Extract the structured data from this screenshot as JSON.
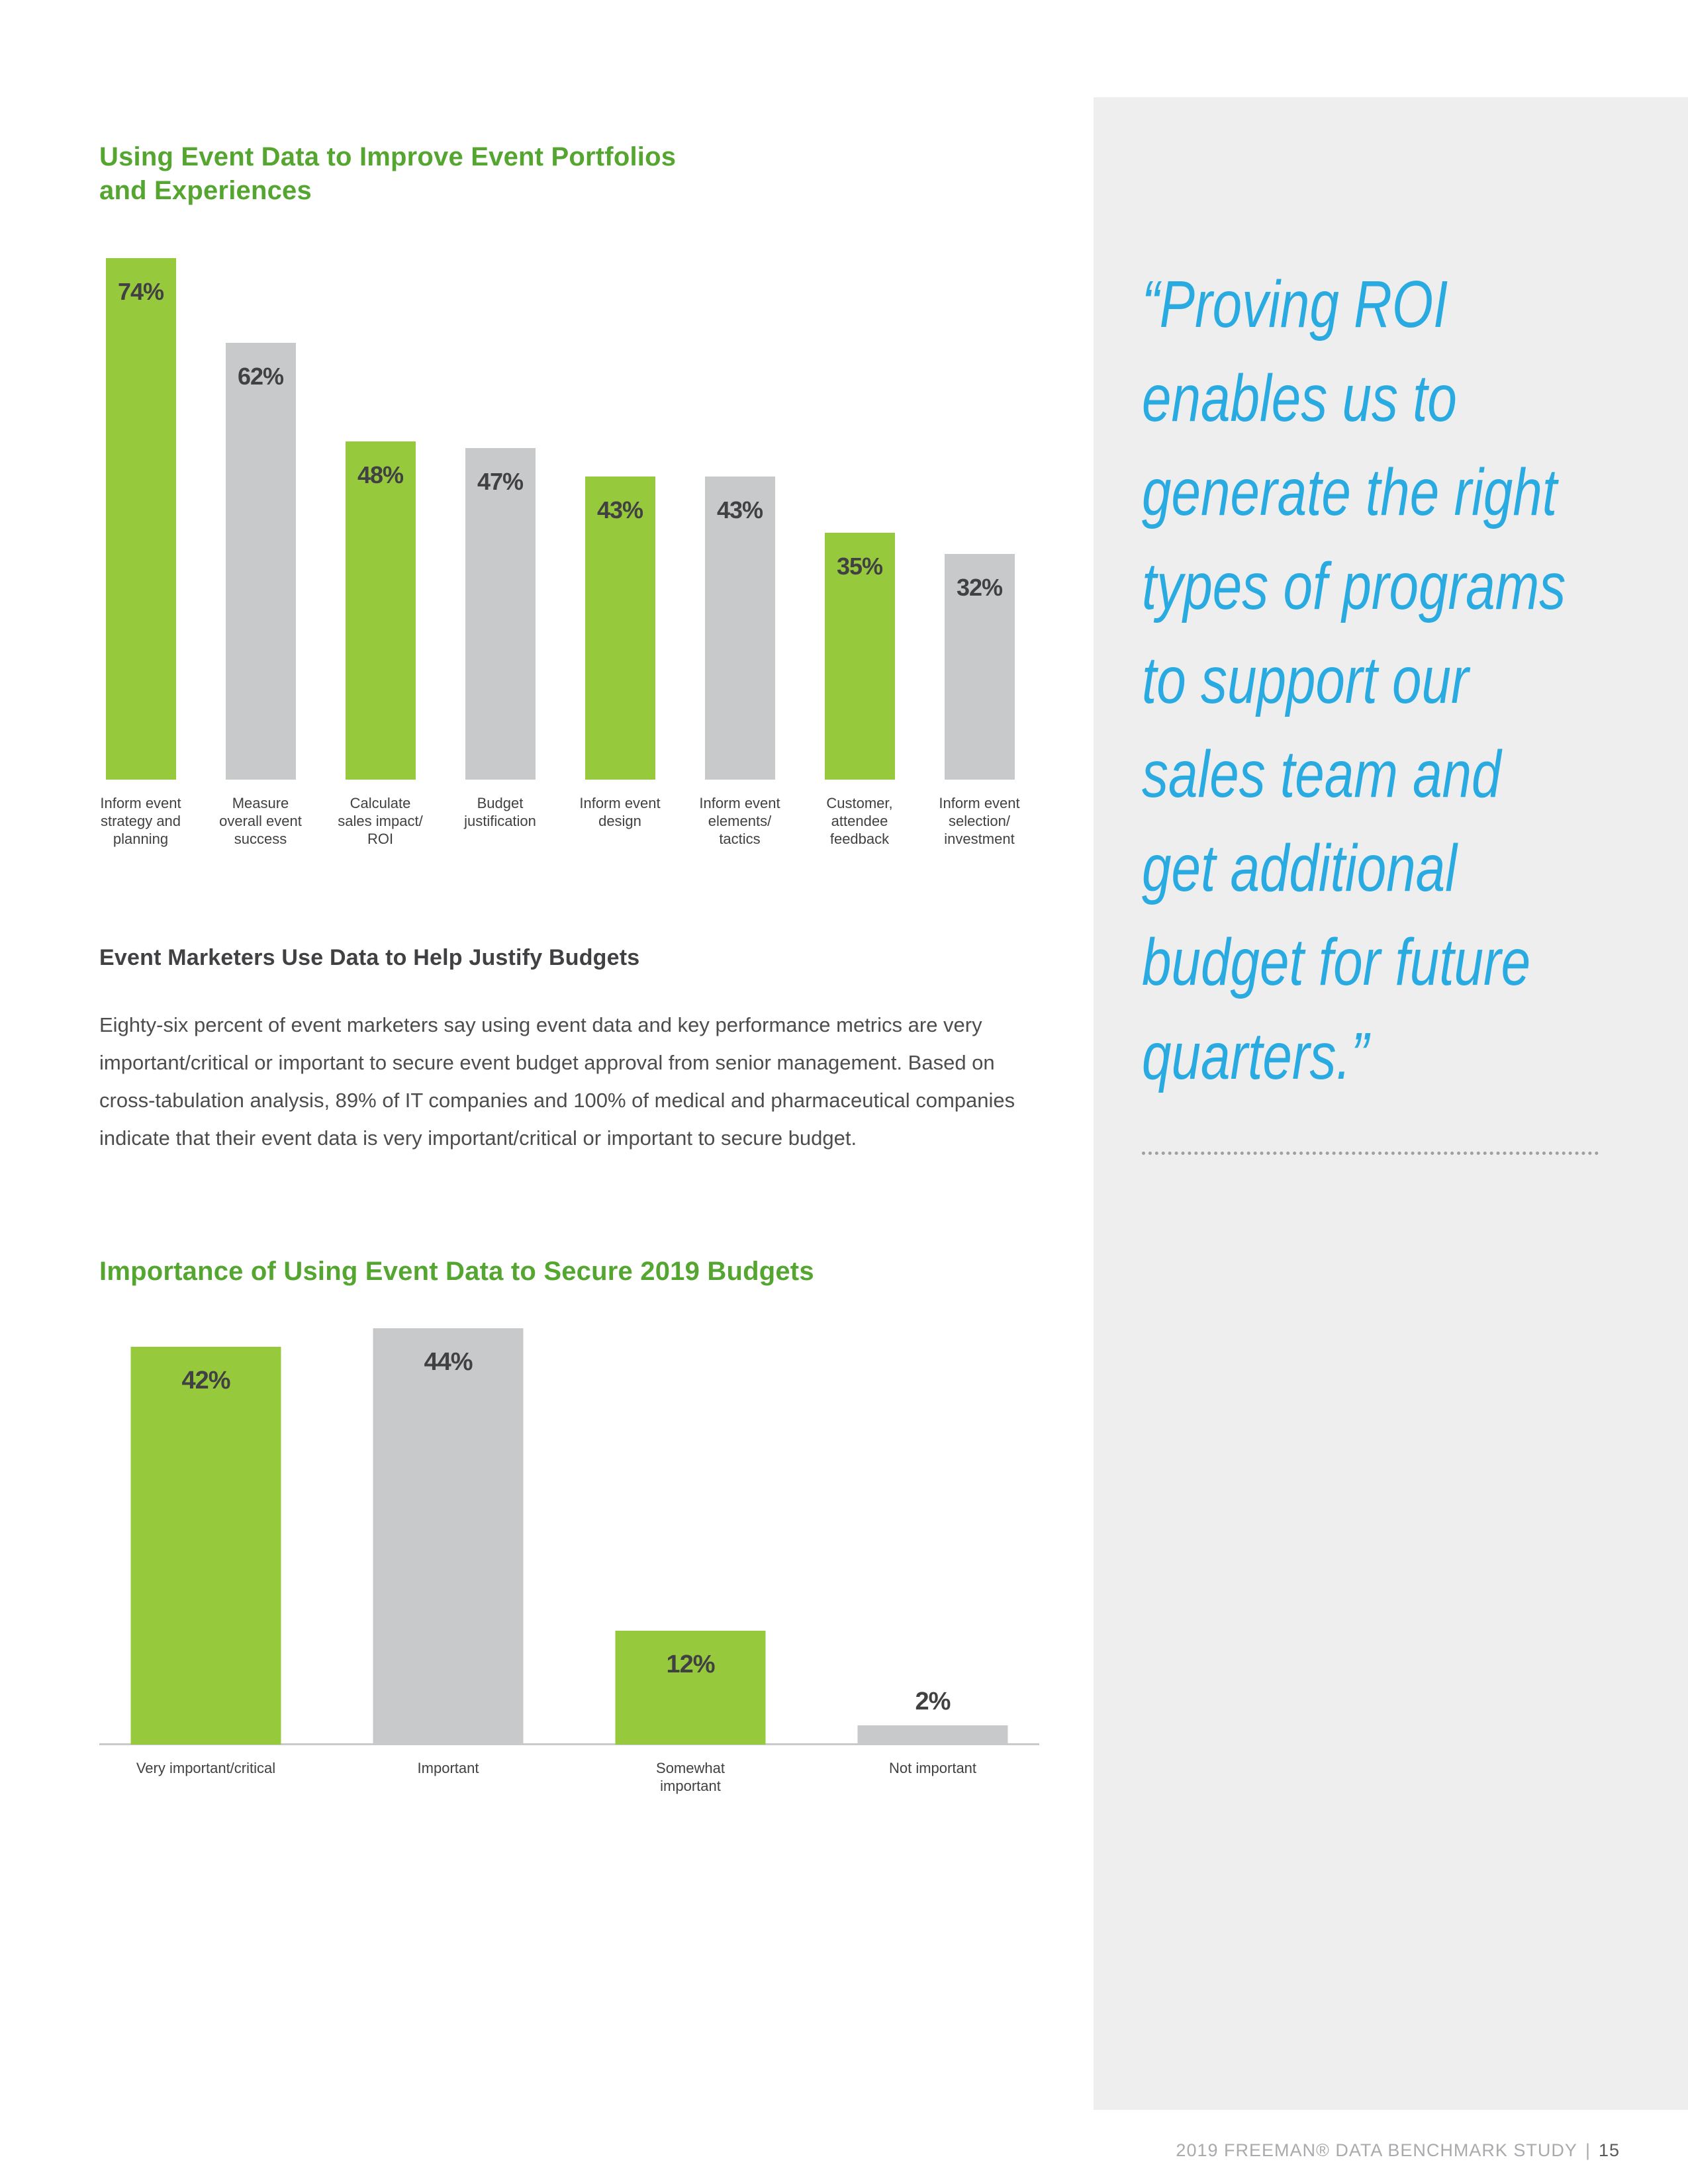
{
  "headings": {
    "chart1_title": "Using Event Data to Improve Event Portfolios\nand Experiences",
    "section2": "Event Marketers Use Data to Help Justify Budgets",
    "chart2_title": "Importance of Using Event Data to Secure 2019 Budgets"
  },
  "paragraph": "Eighty-six percent of event marketers say using event data and key performance metrics are very important/critical or important to secure event budget approval from senior management. Based on cross-tabulation analysis, 89% of IT companies and 100% of medical and pharmaceutical companies indicate that their event data is very important/critical or important to secure budget.",
  "quote": {
    "text": "“Proving ROI\nenables us to\ngenerate the right\ntypes of programs\nto support our\nsales team and\nget additional\nbudget for future\nquarters.”",
    "color": "#29ABE2"
  },
  "footer": {
    "study": "2019 FREEMAN® DATA BENCHMARK STUDY",
    "separator": "|",
    "page_number": "15"
  },
  "colors": {
    "heading_green": "#55A630",
    "bar_green": "#97C93D",
    "bar_gray": "#C8C9CB",
    "quote_blue": "#29ABE2",
    "text_dark": "#414042",
    "sidebar_bg": "#EEEEEF",
    "footer_gray": "#A8AAAD"
  },
  "chart_data": [
    {
      "type": "bar",
      "title": "Using Event Data to Improve Event Portfolios and Experiences",
      "categories": [
        "Inform event\nstrategy and\nplanning",
        "Measure\noverall event\nsuccess",
        "Calculate\nsales impact/\nROI",
        "Budget\njustification",
        "Inform event\ndesign",
        "Inform event\nelements/\ntactics",
        "Customer,\nattendee\nfeedback",
        "Inform event\nselection/\ninvestment"
      ],
      "values": [
        74,
        62,
        48,
        47,
        43,
        43,
        35,
        32
      ],
      "unit": "%",
      "bar_colors": [
        "#97C93D",
        "#C8C9CB",
        "#97C93D",
        "#C8C9CB",
        "#97C93D",
        "#C8C9CB",
        "#97C93D",
        "#C8C9CB"
      ],
      "ylim": [
        0,
        80
      ],
      "grid": false,
      "legend": false
    },
    {
      "type": "bar",
      "title": "Importance of Using Event Data to Secure 2019 Budgets",
      "categories": [
        "Very important/critical",
        "Important",
        "Somewhat\nimportant",
        "Not important"
      ],
      "values": [
        42,
        44,
        12,
        2
      ],
      "unit": "%",
      "bar_colors": [
        "#97C93D",
        "#C8C9CB",
        "#97C93D",
        "#C8C9CB"
      ],
      "ylim": [
        0,
        50
      ],
      "grid": false,
      "legend": false
    }
  ]
}
